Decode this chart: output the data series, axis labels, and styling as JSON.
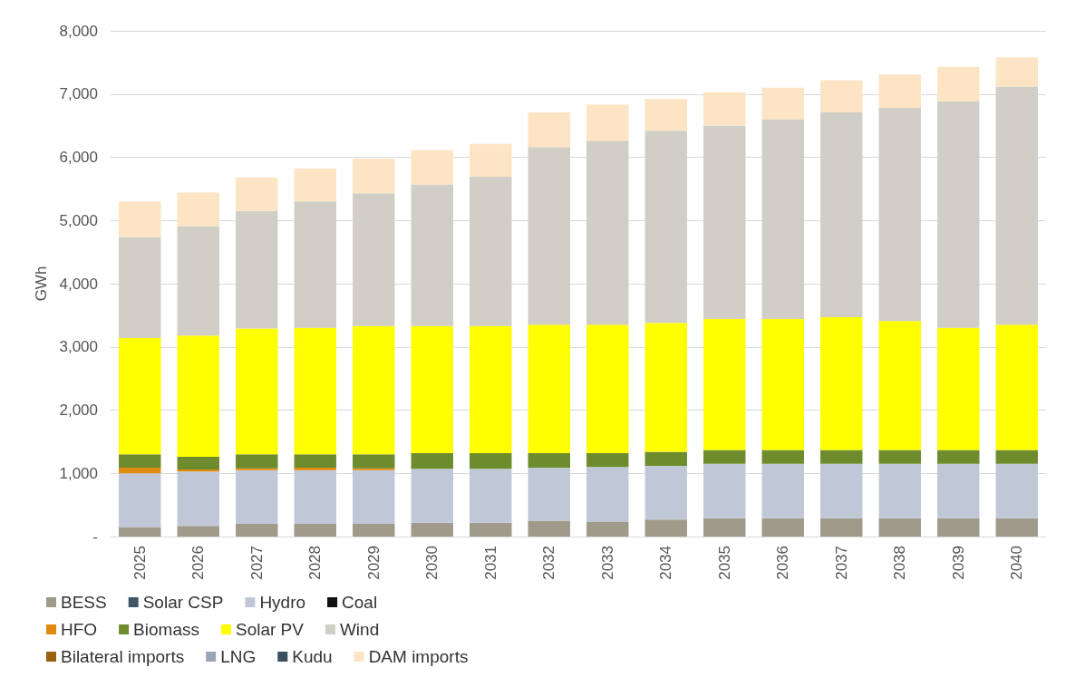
{
  "chart_data": {
    "type": "bar",
    "stacked": true,
    "ylabel": "GWh",
    "categories": [
      "2025",
      "2026",
      "2027",
      "2028",
      "2029",
      "2030",
      "2031",
      "2032",
      "2033",
      "2034",
      "2035",
      "2036",
      "2037",
      "2038",
      "2039",
      "2040"
    ],
    "series": [
      {
        "name": "BESS",
        "color": "#a09a8a",
        "values": [
          150,
          170,
          200,
          200,
          200,
          220,
          220,
          250,
          230,
          270,
          290,
          290,
          290,
          290,
          290,
          290
        ]
      },
      {
        "name": "Solar CSP",
        "color": "#3f5666",
        "values": [
          0,
          0,
          0,
          0,
          0,
          0,
          0,
          0,
          0,
          0,
          0,
          0,
          0,
          0,
          0,
          0
        ]
      },
      {
        "name": "Hydro",
        "color": "#c0c8d8",
        "values": [
          850,
          860,
          850,
          850,
          850,
          850,
          850,
          840,
          870,
          850,
          860,
          860,
          860,
          860,
          860,
          860
        ]
      },
      {
        "name": "Coal",
        "color": "#111111",
        "values": [
          0,
          0,
          0,
          0,
          0,
          0,
          0,
          0,
          0,
          0,
          0,
          0,
          0,
          0,
          0,
          0
        ]
      },
      {
        "name": "HFO",
        "color": "#e08a10",
        "values": [
          90,
          30,
          30,
          40,
          30,
          0,
          0,
          0,
          0,
          0,
          0,
          0,
          0,
          0,
          0,
          0
        ]
      },
      {
        "name": "Biomass",
        "color": "#6e8c2e",
        "values": [
          210,
          200,
          220,
          210,
          220,
          250,
          250,
          230,
          220,
          220,
          220,
          220,
          220,
          220,
          220,
          220
        ]
      },
      {
        "name": "Solar PV",
        "color": "#ffff00",
        "values": [
          1840,
          1920,
          1990,
          2000,
          2030,
          2010,
          2010,
          2030,
          2030,
          2040,
          2070,
          2070,
          2100,
          2040,
          1930,
          1980
        ]
      },
      {
        "name": "Wind",
        "color": "#d0cec6",
        "values": [
          1600,
          1730,
          1860,
          2000,
          2100,
          2240,
          2360,
          2810,
          2910,
          3040,
          3060,
          3160,
          3240,
          3370,
          3580,
          3770
        ]
      },
      {
        "name": "Bilateral imports",
        "color": "#9a6010",
        "values": [
          0,
          0,
          0,
          0,
          0,
          0,
          0,
          0,
          0,
          0,
          0,
          0,
          0,
          0,
          0,
          0
        ]
      },
      {
        "name": "LNG",
        "color": "#9aa6b8",
        "values": [
          0,
          0,
          0,
          0,
          0,
          0,
          0,
          0,
          0,
          0,
          0,
          0,
          0,
          0,
          0,
          0
        ]
      },
      {
        "name": "Kudu",
        "color": "#3a5060",
        "values": [
          0,
          0,
          0,
          0,
          0,
          0,
          0,
          0,
          0,
          0,
          0,
          0,
          0,
          0,
          0,
          0
        ]
      },
      {
        "name": "DAM imports",
        "color": "#fde4c4",
        "values": [
          560,
          530,
          530,
          520,
          550,
          540,
          520,
          550,
          570,
          500,
          530,
          500,
          510,
          530,
          550,
          460
        ]
      }
    ],
    "ylim": [
      0,
      8000
    ],
    "yticks": [
      {
        "value": 0,
        "label": "-"
      },
      {
        "value": 1000,
        "label": "1,000"
      },
      {
        "value": 2000,
        "label": "2,000"
      },
      {
        "value": 3000,
        "label": "3,000"
      },
      {
        "value": 4000,
        "label": "4,000"
      },
      {
        "value": 5000,
        "label": "5,000"
      },
      {
        "value": 6000,
        "label": "6,000"
      },
      {
        "value": 7000,
        "label": "7,000"
      },
      {
        "value": 8000,
        "label": "8,000"
      }
    ],
    "grid": "y",
    "legend": "bottom"
  }
}
